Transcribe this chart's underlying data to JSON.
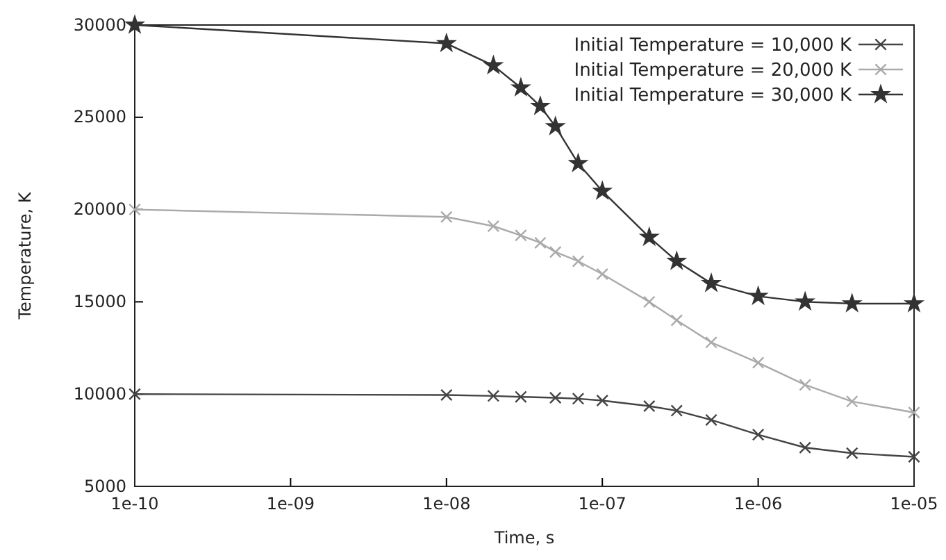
{
  "chart_data": {
    "type": "line",
    "xlabel": "Time, s",
    "ylabel": "Temperature, K",
    "log": "x",
    "grid": false,
    "legend": "top right",
    "xlim": [
      1e-10,
      1e-05
    ],
    "xticks": [
      {
        "value": 1e-10,
        "label": "1e-10"
      },
      {
        "value": 1e-09,
        "label": "1e-09"
      },
      {
        "value": 1e-08,
        "label": "1e-08"
      },
      {
        "value": 1e-07,
        "label": "1e-07"
      },
      {
        "value": 1e-06,
        "label": "1e-06"
      },
      {
        "value": 1e-05,
        "label": "1e-05"
      }
    ],
    "ylim": [
      5000,
      30000
    ],
    "yticks": [
      5000,
      10000,
      15000,
      20000,
      25000,
      30000
    ],
    "series": [
      {
        "name": "Initial Temperature = 10,000 K",
        "color": "#444444",
        "marker": "cross",
        "x": [
          1e-10,
          1e-08,
          2e-08,
          3e-08,
          5e-08,
          7e-08,
          1e-07,
          2e-07,
          3e-07,
          5e-07,
          1e-06,
          2e-06,
          4e-06,
          1e-05
        ],
        "values": [
          10000,
          9950,
          9900,
          9850,
          9800,
          9750,
          9650,
          9350,
          9100,
          8600,
          7800,
          7100,
          6800,
          6600
        ]
      },
      {
        "name": "Initial Temperature = 20,000 K",
        "color": "#aaaaaa",
        "marker": "cross",
        "x": [
          1e-10,
          1e-08,
          2e-08,
          3e-08,
          4e-08,
          5e-08,
          7e-08,
          1e-07,
          2e-07,
          3e-07,
          5e-07,
          1e-06,
          2e-06,
          4e-06,
          1e-05
        ],
        "values": [
          20000,
          19600,
          19100,
          18600,
          18200,
          17700,
          17200,
          16500,
          15000,
          14000,
          12800,
          11700,
          10500,
          9600,
          9000
        ]
      },
      {
        "name": "Initial Temperature = 30,000 K",
        "color": "#333333",
        "marker": "star",
        "x": [
          1e-10,
          1e-08,
          2e-08,
          3e-08,
          4e-08,
          5e-08,
          7e-08,
          1e-07,
          2e-07,
          3e-07,
          5e-07,
          1e-06,
          2e-06,
          4e-06,
          1e-05
        ],
        "values": [
          30000,
          29000,
          27800,
          26600,
          25600,
          24500,
          22500,
          21000,
          18500,
          17200,
          16000,
          15300,
          15000,
          14900,
          14900
        ]
      }
    ]
  }
}
